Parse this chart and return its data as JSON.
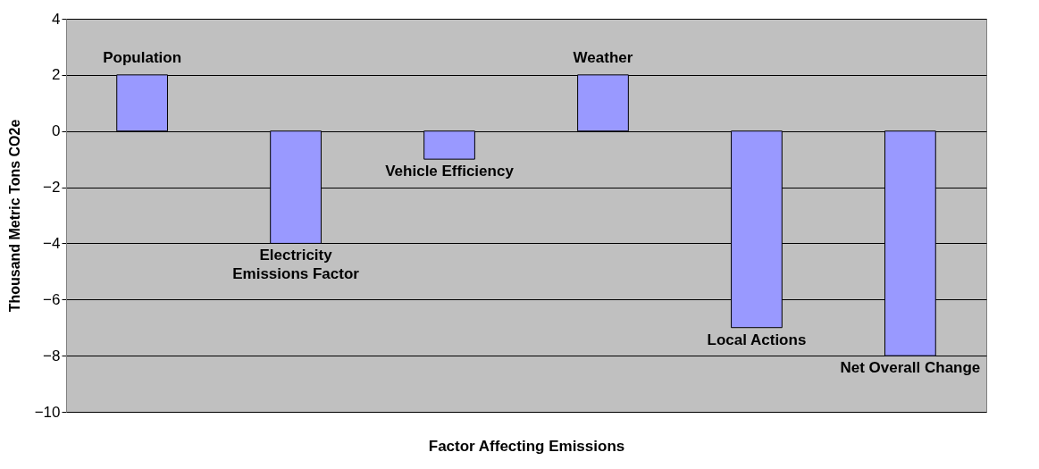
{
  "chart_data": {
    "type": "bar",
    "xlabel": "Factor Affecting Emissions",
    "ylabel": "Thousand Metric Tons CO2e",
    "categories": [
      "Population",
      "Electricity Emissions Factor",
      "Vehicle Efficiency",
      "Weather",
      "Local Actions",
      "Net Overall Change"
    ],
    "values": [
      2,
      -4,
      -1,
      2,
      -7,
      -8
    ],
    "color": "#9999ff",
    "ylim": [
      -10,
      4
    ],
    "yticks": [
      -10,
      -8,
      -6,
      -4,
      -2,
      0,
      2,
      4
    ],
    "grid": "y",
    "tick_labels": "y"
  }
}
